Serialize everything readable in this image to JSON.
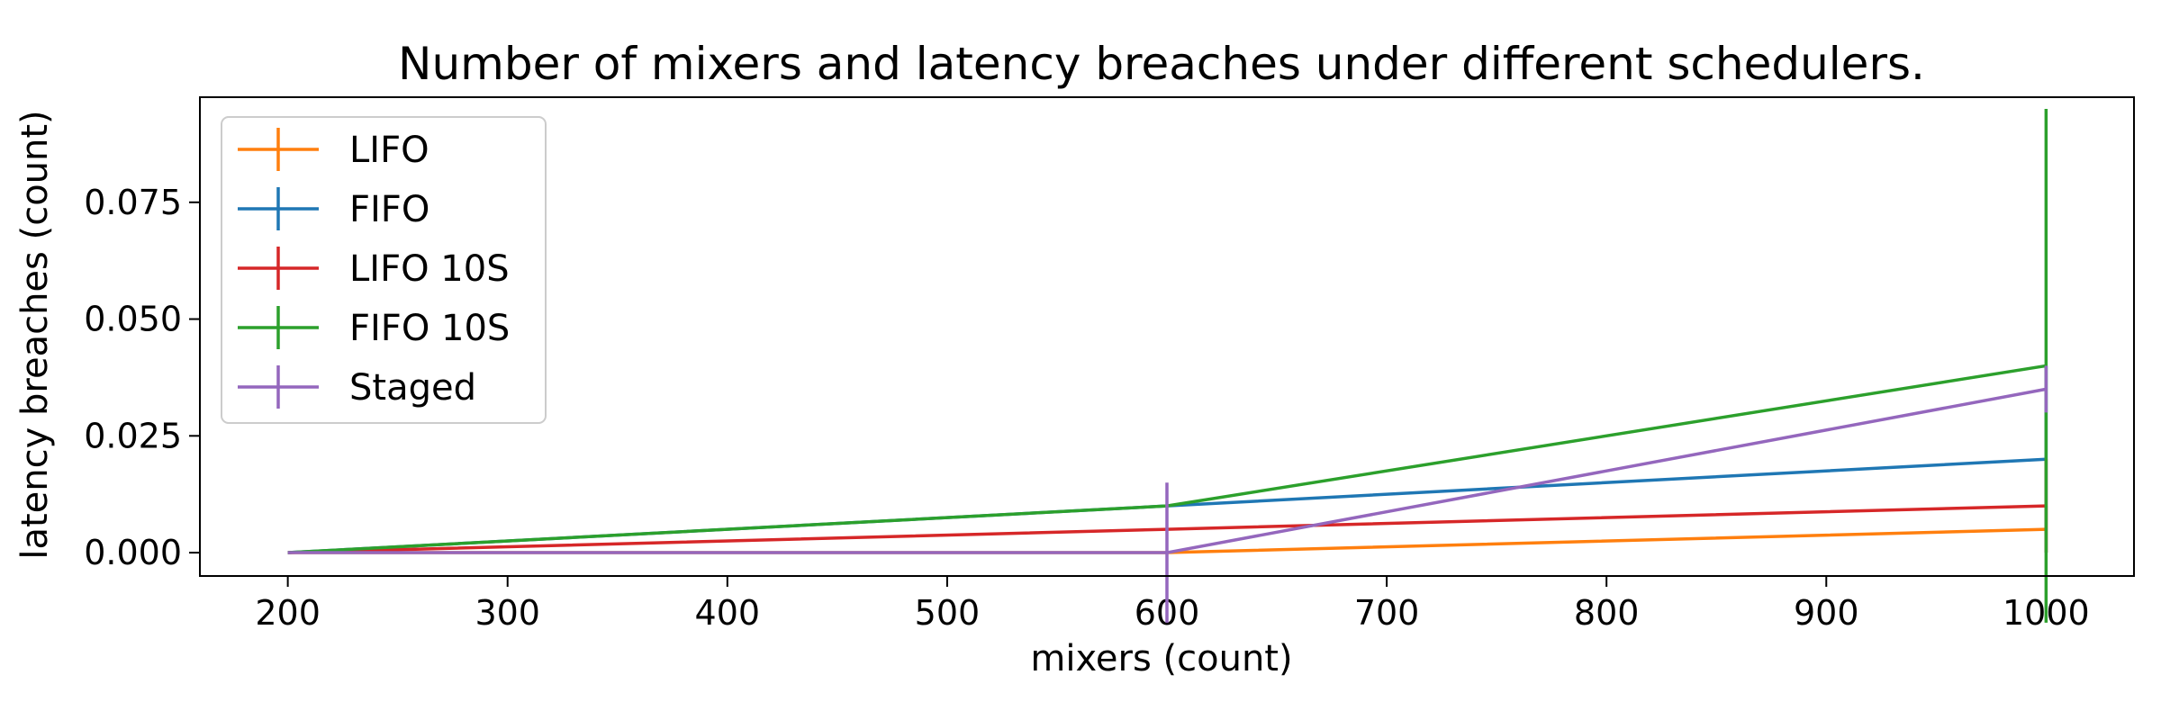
{
  "chart_data": {
    "type": "line",
    "title": "Number of mixers and latency breaches under different schedulers.",
    "xlabel": "mixers (count)",
    "ylabel": "latency breaches (count)",
    "x": [
      200,
      600,
      1000
    ],
    "xlim": [
      160,
      1040
    ],
    "ylim": [
      -0.005,
      0.0975
    ],
    "xticks": [
      "200",
      "300",
      "400",
      "500",
      "600",
      "700",
      "800",
      "900",
      "1000"
    ],
    "yticks": [
      "0.000",
      "0.025",
      "0.050",
      "0.075"
    ],
    "legend_position": "upper-left",
    "grid": false,
    "series": [
      {
        "name": "LIFO",
        "color": "#ff7f0e",
        "values": [
          0,
          0,
          0.005
        ],
        "error": [
          0,
          0,
          0.005
        ]
      },
      {
        "name": "FIFO",
        "color": "#1f77b4",
        "values": [
          0,
          0.01,
          0.02
        ],
        "error": [
          0,
          0,
          0.02
        ]
      },
      {
        "name": "LIFO 10S",
        "color": "#d62728",
        "values": [
          0,
          0.005,
          0.01
        ],
        "error": [
          0,
          0,
          0.01
        ]
      },
      {
        "name": "FIFO 10S",
        "color": "#2ca02c",
        "values": [
          0,
          0.01,
          0.04
        ],
        "error": [
          0,
          0,
          0.055
        ]
      },
      {
        "name": "Staged",
        "color": "#9467bd",
        "values": [
          0,
          0,
          0.035
        ],
        "error": [
          0,
          0.015,
          0.005
        ]
      }
    ]
  }
}
